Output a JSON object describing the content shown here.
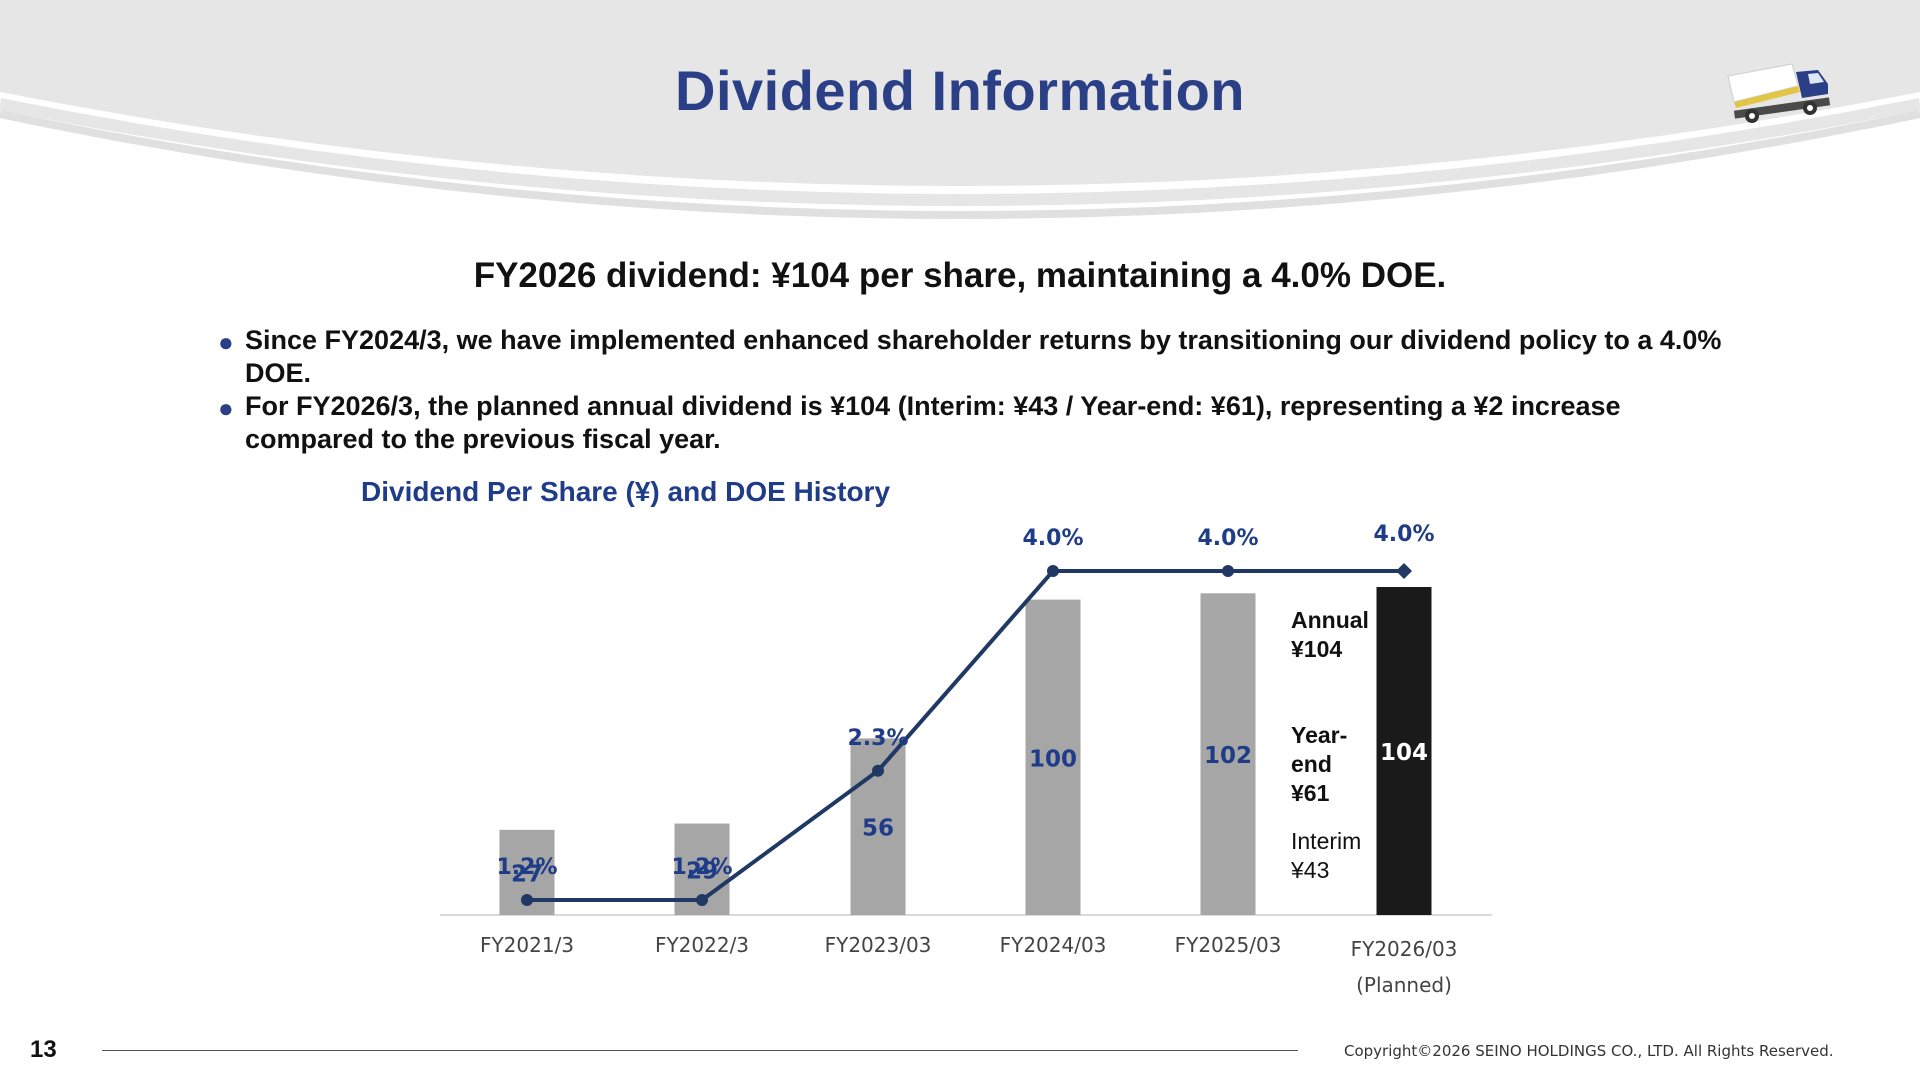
{
  "header": {
    "title": "Dividend Information"
  },
  "headline": "FY2026 dividend: ¥104 per share, maintaining a 4.0% DOE.",
  "bullets": [
    {
      "text": "Since FY2024/3, we have implemented enhanced shareholder returns by transitioning our dividend policy to a 4.0% DOE."
    },
    {
      "text": "For FY2026/3, the planned annual dividend is ¥104 (Interim: ¥43 / Year-end: ¥61), representing a ¥2 increase compared to the previous fiscal year."
    }
  ],
  "chart_title": "Dividend Per Share (¥) and DOE History",
  "chart_data": {
    "type": "bar",
    "title": "Dividend Per Share (¥) and DOE History",
    "categories": [
      "FY2021/3",
      "FY2022/3",
      "FY2023/03",
      "FY2024/03",
      "FY2025/03",
      "FY2026/03"
    ],
    "category_sublabels": [
      "",
      "",
      "",
      "",
      "",
      "(Planned)"
    ],
    "series": [
      {
        "values": [
          27,
          29,
          56,
          100,
          102,
          104
        ],
        "color": "#a6a6a6",
        "highlight_last_color": "#1a1a1a"
      },
      {
        "values": [
          1.2,
          1.2,
          2.3,
          4.0,
          4.0,
          4.0
        ],
        "labels": [
          "1.2%",
          "1.2%",
          "2.3%",
          "4.0%",
          "4.0%",
          "4.0%"
        ],
        "type": "line",
        "color": "#1f3864"
      }
    ],
    "bar_labels": [
      "27",
      "29",
      "56",
      "100",
      "102",
      "104"
    ],
    "ylim_bars": [
      0,
      104
    ],
    "ylim_line": [
      0,
      4.0
    ],
    "grid": false,
    "annotations": {
      "annual": [
        "Annual",
        "¥104"
      ],
      "year_end": [
        "Year-",
        "end",
        "¥61"
      ],
      "interim": [
        "Interim",
        "¥43"
      ]
    }
  },
  "footer": {
    "page_number": "13",
    "copyright": "Copyright©2026  SEINO HOLDINGS CO., LTD.  All  Rights Reserved."
  },
  "colors": {
    "title": "#2b3f86",
    "bar": "#a6a6a6",
    "bar_planned": "#1a1a1a",
    "line": "#1f3864",
    "header_bg": "#e6e6e6"
  }
}
